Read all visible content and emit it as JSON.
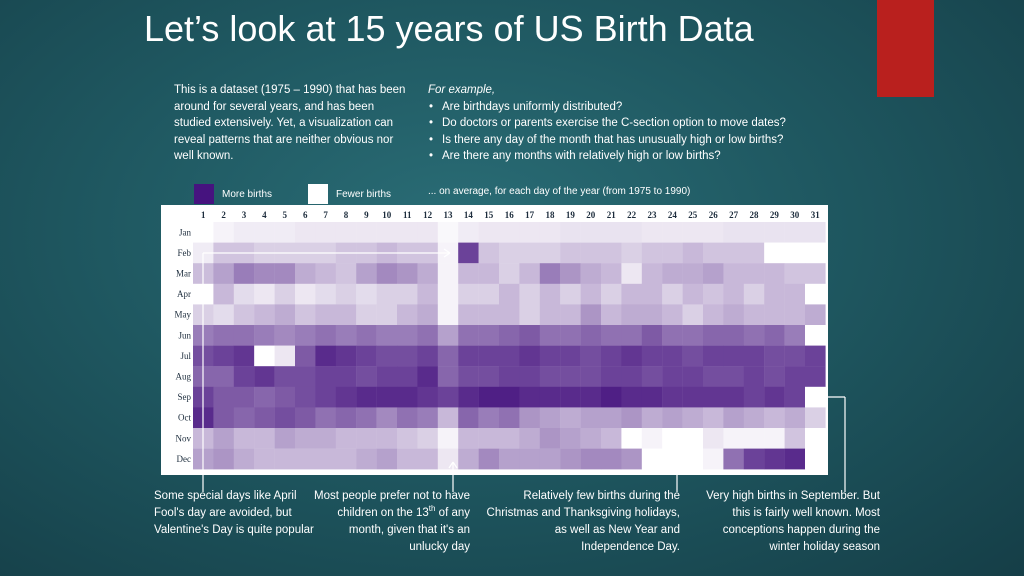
{
  "slide": {
    "title": "Let’s look at 15 years of US Birth Data",
    "intro": "This is a dataset (1975 – 1990) that has been around for several years, and has been studied extensively. Yet, a visualization can reveal patterns that are neither obvious nor well known.",
    "examples_lead": "For example,",
    "examples": [
      "Are birthdays uniformly distributed?",
      "Do doctors or parents exercise the C-section option to move dates?",
      "Is there any day of the month that has unusually high or low births?",
      "Are there any months with relatively high or low births?"
    ],
    "legend": {
      "more_label": "More births",
      "fewer_label": "Fewer births",
      "note": "... on average, for each day of the year (from 1975 to 1990)"
    },
    "annotations": {
      "a1": "Some special days like April Fool's day are avoided, but Valentine's Day is quite popular",
      "a2_pre": "Most people prefer not to have children on the",
      "a2_num": "13",
      "a2_sup": "th",
      "a2_post": "of any month, given that it's an unlucky day",
      "a3": "Relatively few births during the Christmas and Thanksgiving holidays, as well as New Year and Independence Day.",
      "a4": "Very high births in September. But this is fairly well known. Most conceptions happen during the winter holiday season"
    }
  },
  "colors": {
    "more": "#46137f",
    "fewer": "#ffffff",
    "frame": "#ffffff",
    "accent": "#b9201e",
    "background": "#1f5861"
  },
  "chart_data": {
    "type": "heatmap",
    "x_categories": [
      "1",
      "2",
      "3",
      "4",
      "5",
      "6",
      "7",
      "8",
      "9",
      "10",
      "11",
      "12",
      "13",
      "14",
      "15",
      "16",
      "17",
      "18",
      "19",
      "20",
      "21",
      "22",
      "23",
      "24",
      "25",
      "26",
      "27",
      "28",
      "29",
      "30",
      "31"
    ],
    "y_categories": [
      "Jan",
      "Feb",
      "Mar",
      "Apr",
      "May",
      "Jun",
      "Jul",
      "Aug",
      "Sep",
      "Oct",
      "Nov",
      "Dec"
    ],
    "value_scale": "relative birth intensity, 0 = fewer births, 1 = more births",
    "values": [
      [
        0.0,
        0.05,
        0.08,
        0.08,
        0.08,
        0.1,
        0.1,
        0.1,
        0.1,
        0.1,
        0.1,
        0.1,
        0.03,
        0.08,
        0.1,
        0.1,
        0.1,
        0.1,
        0.12,
        0.12,
        0.12,
        0.12,
        0.1,
        0.1,
        0.1,
        0.1,
        0.12,
        0.12,
        0.12,
        0.12,
        0.12
      ],
      [
        0.08,
        0.25,
        0.25,
        0.2,
        0.2,
        0.2,
        0.2,
        0.25,
        0.25,
        0.3,
        0.25,
        0.25,
        0.05,
        0.8,
        0.25,
        0.2,
        0.2,
        0.2,
        0.25,
        0.25,
        0.25,
        0.2,
        0.25,
        0.25,
        0.3,
        0.25,
        0.25,
        0.25,
        0.0,
        0.0,
        0.0
      ],
      [
        0.28,
        0.4,
        0.55,
        0.5,
        0.5,
        0.35,
        0.3,
        0.25,
        0.4,
        0.5,
        0.45,
        0.35,
        0.05,
        0.3,
        0.3,
        0.2,
        0.3,
        0.55,
        0.45,
        0.35,
        0.3,
        0.1,
        0.3,
        0.35,
        0.35,
        0.4,
        0.3,
        0.3,
        0.3,
        0.25,
        0.25
      ],
      [
        0.0,
        0.3,
        0.15,
        0.1,
        0.2,
        0.1,
        0.15,
        0.2,
        0.15,
        0.2,
        0.2,
        0.3,
        0.05,
        0.2,
        0.2,
        0.3,
        0.2,
        0.3,
        0.2,
        0.3,
        0.2,
        0.3,
        0.3,
        0.2,
        0.3,
        0.25,
        0.3,
        0.2,
        0.3,
        0.3,
        0.0
      ],
      [
        0.2,
        0.15,
        0.25,
        0.3,
        0.35,
        0.25,
        0.3,
        0.3,
        0.2,
        0.2,
        0.3,
        0.35,
        0.05,
        0.3,
        0.3,
        0.3,
        0.2,
        0.3,
        0.3,
        0.45,
        0.3,
        0.35,
        0.35,
        0.3,
        0.2,
        0.3,
        0.35,
        0.3,
        0.3,
        0.3,
        0.35
      ],
      [
        0.55,
        0.6,
        0.6,
        0.55,
        0.5,
        0.55,
        0.6,
        0.55,
        0.6,
        0.55,
        0.55,
        0.6,
        0.4,
        0.6,
        0.6,
        0.65,
        0.7,
        0.6,
        0.6,
        0.65,
        0.6,
        0.6,
        0.7,
        0.6,
        0.6,
        0.65,
        0.65,
        0.6,
        0.65,
        0.55,
        0.0
      ],
      [
        0.75,
        0.8,
        0.85,
        0.0,
        0.1,
        0.7,
        0.9,
        0.85,
        0.8,
        0.75,
        0.75,
        0.8,
        0.65,
        0.8,
        0.8,
        0.8,
        0.85,
        0.8,
        0.8,
        0.75,
        0.8,
        0.85,
        0.8,
        0.8,
        0.75,
        0.8,
        0.8,
        0.8,
        0.75,
        0.75,
        0.8
      ],
      [
        0.65,
        0.65,
        0.8,
        0.85,
        0.75,
        0.75,
        0.8,
        0.8,
        0.75,
        0.8,
        0.8,
        0.9,
        0.65,
        0.75,
        0.75,
        0.8,
        0.8,
        0.75,
        0.75,
        0.75,
        0.8,
        0.8,
        0.75,
        0.8,
        0.8,
        0.75,
        0.75,
        0.8,
        0.75,
        0.8,
        0.8
      ],
      [
        0.8,
        0.7,
        0.7,
        0.65,
        0.7,
        0.75,
        0.8,
        0.85,
        0.9,
        0.9,
        0.9,
        0.85,
        0.8,
        0.9,
        0.95,
        0.95,
        0.9,
        0.9,
        0.9,
        0.9,
        0.95,
        0.9,
        0.9,
        0.85,
        0.85,
        0.85,
        0.85,
        0.8,
        0.85,
        0.8,
        0.0
      ],
      [
        0.9,
        0.7,
        0.65,
        0.7,
        0.75,
        0.7,
        0.6,
        0.65,
        0.6,
        0.5,
        0.6,
        0.55,
        0.3,
        0.65,
        0.55,
        0.6,
        0.45,
        0.4,
        0.35,
        0.4,
        0.4,
        0.45,
        0.35,
        0.4,
        0.35,
        0.3,
        0.4,
        0.35,
        0.3,
        0.35,
        0.2
      ],
      [
        0.3,
        0.4,
        0.3,
        0.3,
        0.4,
        0.35,
        0.35,
        0.3,
        0.3,
        0.3,
        0.25,
        0.2,
        0.05,
        0.3,
        0.3,
        0.3,
        0.35,
        0.45,
        0.4,
        0.35,
        0.3,
        0.0,
        0.05,
        0.0,
        0.0,
        0.1,
        0.05,
        0.05,
        0.05,
        0.25,
        0.0
      ],
      [
        0.4,
        0.45,
        0.35,
        0.3,
        0.3,
        0.3,
        0.3,
        0.3,
        0.35,
        0.4,
        0.3,
        0.3,
        0.1,
        0.35,
        0.5,
        0.4,
        0.4,
        0.4,
        0.45,
        0.5,
        0.5,
        0.45,
        0.0,
        0.0,
        0.0,
        0.05,
        0.6,
        0.8,
        0.85,
        0.9,
        0.0
      ]
    ]
  }
}
